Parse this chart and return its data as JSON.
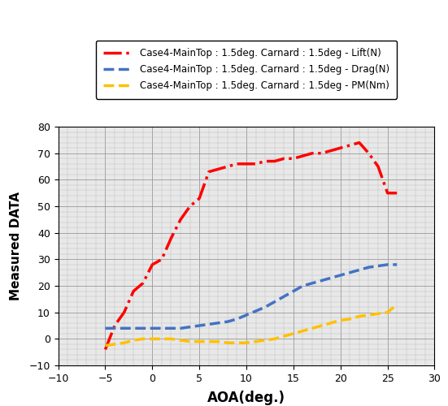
{
  "lift_x": [
    -5,
    -4,
    -3,
    -2,
    -1,
    0,
    1,
    2,
    3,
    4,
    5,
    6,
    7,
    8,
    9,
    10,
    11,
    12,
    13,
    14,
    15,
    16,
    17,
    18,
    19,
    20,
    21,
    22,
    23,
    24,
    25,
    26
  ],
  "lift_y": [
    -4,
    5,
    10,
    18,
    21,
    28,
    30,
    38,
    45,
    50,
    53,
    63,
    64,
    65,
    66,
    66,
    66,
    67,
    67,
    68,
    68,
    69,
    70,
    70,
    71,
    72,
    73,
    74,
    70,
    65,
    55,
    55
  ],
  "drag_x": [
    -5,
    -4,
    -3,
    -2,
    -1,
    0,
    1,
    2,
    3,
    4,
    5,
    6,
    7,
    8,
    9,
    10,
    11,
    12,
    13,
    14,
    15,
    16,
    17,
    18,
    19,
    20,
    21,
    22,
    23,
    24,
    25,
    26
  ],
  "drag_y": [
    4,
    4,
    4,
    4,
    4,
    4,
    4,
    4,
    4,
    4.5,
    5,
    5.5,
    6,
    6.5,
    7.5,
    9,
    10.5,
    12,
    14,
    16,
    18,
    20,
    21,
    22,
    23,
    24,
    25,
    26,
    27,
    27.5,
    28,
    28
  ],
  "pm_x": [
    -5,
    -4,
    -3,
    -2,
    -1,
    0,
    1,
    2,
    3,
    4,
    5,
    6,
    7,
    8,
    9,
    10,
    11,
    12,
    13,
    14,
    15,
    16,
    17,
    18,
    19,
    20,
    21,
    22,
    23,
    24,
    25,
    26
  ],
  "pm_y": [
    -2.5,
    -2,
    -1.5,
    -0.5,
    0,
    0,
    0,
    0,
    -0.5,
    -1,
    -1,
    -1,
    -1,
    -1.5,
    -1.5,
    -1.5,
    -1,
    -0.5,
    0,
    1,
    2,
    3,
    4,
    5,
    6,
    7,
    7.5,
    8.5,
    9,
    9.5,
    10,
    13
  ],
  "lift_color": "#ff0000",
  "drag_color": "#4472c4",
  "pm_color": "#ffc000",
  "xlabel": "AOA(deg.)",
  "ylabel": "Measured DATA",
  "xlim": [
    -10,
    30
  ],
  "ylim": [
    -10,
    80
  ],
  "xticks": [
    -10,
    -5,
    0,
    5,
    10,
    15,
    20,
    25,
    30
  ],
  "yticks": [
    -10,
    0,
    10,
    20,
    30,
    40,
    50,
    60,
    70,
    80
  ],
  "legend_lift": "Case4-MainTop : 1.5deg. Carnard : 1.5deg - Lift(N)",
  "legend_drag": "Case4-MainTop : 1.5deg. Carnard : 1.5deg - Drag(N)",
  "legend_pm": "Case4-MainTop : 1.5deg. Carnard : 1.5deg - PM(Nm)",
  "grid_minor_color": "#bbbbbb",
  "grid_major_color": "#999999",
  "bg_color": "#e8e8e8",
  "fig_bg": "#ffffff"
}
